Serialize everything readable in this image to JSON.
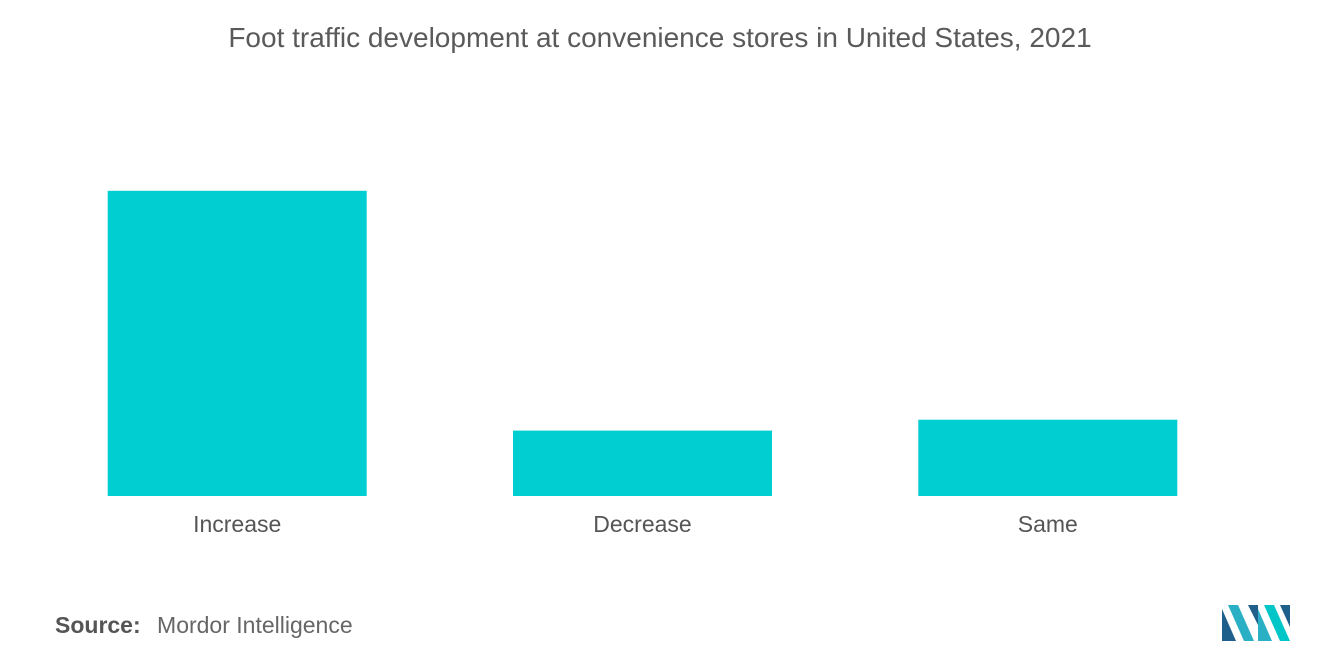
{
  "chart_data": {
    "type": "bar",
    "title": "Foot traffic development at convenience stores in United States, 2021",
    "categories": [
      "Increase",
      "Decrease",
      "Same"
    ],
    "values": [
      70,
      15,
      17.5
    ],
    "ylim": [
      0,
      100
    ],
    "xlabel": "",
    "ylabel": "",
    "grid": false,
    "bar_color": "#00CED1"
  },
  "footer": {
    "source_label": "Source:",
    "source_value": "Mordor Intelligence"
  },
  "logo": {
    "icon": "mordor-intelligence-logo",
    "colors": [
      "#1f5f8b",
      "#2ab0c5",
      "#00c6c8"
    ]
  }
}
